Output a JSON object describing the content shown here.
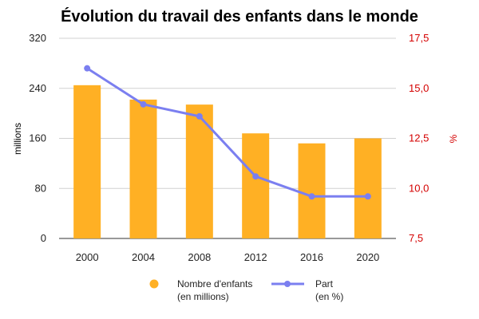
{
  "chart_data": {
    "type": "bar+line",
    "title": "Évolution du travail des enfants dans le monde",
    "categories": [
      "2000",
      "2004",
      "2008",
      "2012",
      "2016",
      "2020"
    ],
    "series": [
      {
        "name": "Nombre d'enfants (en millions)",
        "legend_lines": [
          "Nombre d'enfants",
          "(en millions)"
        ],
        "type": "bar",
        "axis": "left",
        "color": "#ffb024",
        "values": [
          245,
          222,
          214,
          168,
          152,
          160
        ]
      },
      {
        "name": "Part (en %)",
        "legend_lines": [
          "Part",
          "(en %)"
        ],
        "type": "line",
        "axis": "right",
        "color": "#7b7ff0",
        "values": [
          16.0,
          14.2,
          13.6,
          10.6,
          9.6,
          9.6
        ]
      }
    ],
    "y_left": {
      "label": "millions",
      "ylim": [
        0,
        320
      ],
      "ticks": [
        0,
        80,
        160,
        240,
        320
      ],
      "tick_labels": [
        "0",
        "80",
        "160",
        "240",
        "320"
      ]
    },
    "y_right": {
      "label": "%",
      "ylim": [
        7.5,
        17.5
      ],
      "ticks": [
        7.5,
        10.0,
        12.5,
        15.0,
        17.5
      ],
      "tick_labels": [
        "7,5",
        "10,0",
        "12,5",
        "15,0",
        "17,5"
      ],
      "color": "#d40000"
    },
    "xlabel": "",
    "grid": true,
    "legend_position": "bottom"
  }
}
